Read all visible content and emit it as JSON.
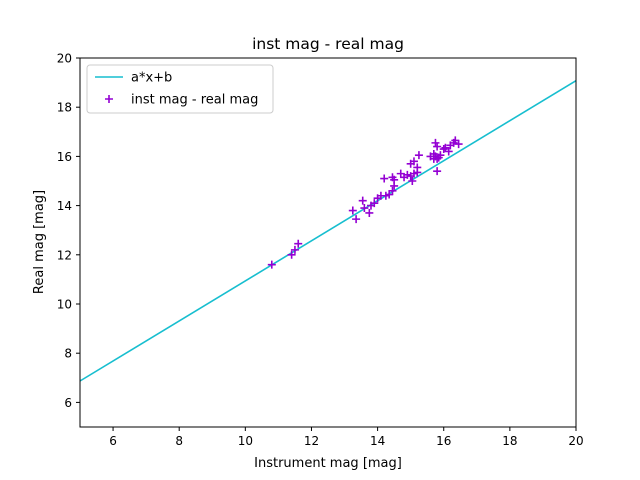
{
  "chart_data": {
    "type": "scatter",
    "title": "inst mag - real mag",
    "xlabel": "Instrument mag [mag]",
    "ylabel": "Real mag [mag]",
    "xlim": [
      5,
      20
    ],
    "ylim": [
      5,
      20
    ],
    "xticks": [
      6,
      8,
      10,
      12,
      14,
      16,
      18,
      20
    ],
    "yticks": [
      6,
      8,
      10,
      12,
      14,
      16,
      18,
      20
    ],
    "grid": false,
    "legend_position": "top-left",
    "series": [
      {
        "name": "a*x+b",
        "type": "line",
        "color": "#17becf",
        "x": [
          5,
          20
        ],
        "y": [
          6.87,
          19.08
        ]
      },
      {
        "name": "inst mag - real mag",
        "type": "scatter",
        "marker": "plus",
        "color": "#9400d3",
        "x": [
          10.8,
          11.4,
          11.5,
          11.6,
          13.25,
          13.35,
          13.55,
          13.6,
          13.75,
          13.8,
          13.9,
          14.0,
          14.1,
          14.2,
          14.25,
          14.35,
          14.45,
          14.5,
          14.45,
          14.5,
          14.7,
          14.8,
          14.9,
          15.0,
          15.05,
          15.1,
          15.2,
          15.0,
          15.1,
          15.2,
          15.25,
          15.6,
          15.7,
          15.75,
          15.8,
          15.85,
          15.9,
          16.0,
          16.05,
          16.15,
          16.2,
          16.3,
          16.45,
          15.75,
          15.8,
          16.35,
          15.7,
          15.8
        ],
        "y": [
          11.6,
          12.0,
          12.2,
          12.45,
          13.8,
          13.45,
          14.2,
          13.9,
          13.7,
          14.0,
          14.1,
          14.3,
          14.4,
          15.1,
          14.4,
          14.45,
          14.6,
          14.8,
          15.15,
          15.05,
          15.3,
          15.15,
          15.25,
          15.2,
          15.0,
          15.3,
          15.35,
          15.7,
          15.8,
          15.55,
          16.05,
          16.0,
          16.1,
          16.0,
          15.9,
          15.95,
          16.05,
          16.3,
          16.35,
          16.2,
          16.45,
          16.55,
          16.5,
          16.55,
          16.4,
          16.65,
          15.9,
          15.4
        ]
      }
    ]
  }
}
